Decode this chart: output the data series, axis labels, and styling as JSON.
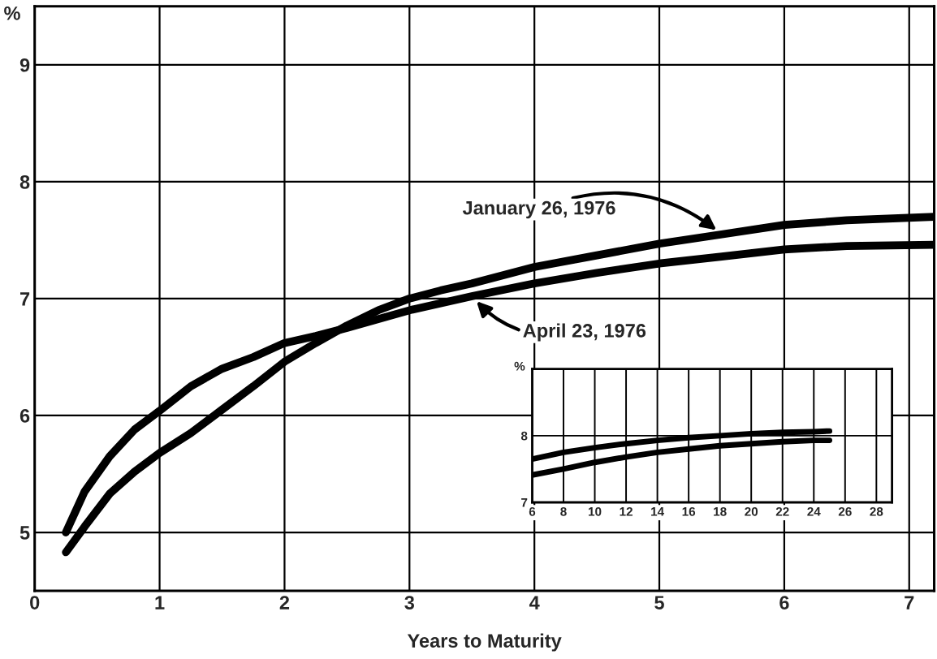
{
  "chart_data": [
    {
      "type": "line",
      "xlabel": "Years to Maturity",
      "ylabel": "%",
      "xlim": [
        0,
        7.2
      ],
      "ylim": [
        4.5,
        9.5
      ],
      "xticks": [
        0,
        1,
        2,
        3,
        4,
        5,
        6,
        7
      ],
      "yticks": [
        5,
        6,
        7,
        8,
        9
      ],
      "grid": true,
      "legend": false,
      "line_style": "solid",
      "marker": "none",
      "series": [
        {
          "name": "January 26, 1976",
          "color": "#000000",
          "x": [
            0.25,
            0.4,
            0.6,
            0.8,
            1.0,
            1.25,
            1.5,
            1.75,
            2.0,
            2.25,
            2.5,
            2.75,
            3.0,
            3.25,
            3.5,
            4.0,
            4.5,
            5.0,
            5.5,
            6.0,
            6.5,
            7.2
          ],
          "values": [
            4.83,
            5.05,
            5.33,
            5.52,
            5.68,
            5.85,
            6.05,
            6.25,
            6.46,
            6.62,
            6.77,
            6.9,
            7.0,
            7.07,
            7.13,
            7.27,
            7.37,
            7.47,
            7.55,
            7.63,
            7.67,
            7.7
          ]
        },
        {
          "name": "April 23, 1976",
          "color": "#000000",
          "x": [
            0.25,
            0.4,
            0.6,
            0.8,
            1.0,
            1.25,
            1.5,
            1.75,
            2.0,
            2.25,
            2.5,
            3.0,
            3.5,
            4.0,
            4.5,
            5.0,
            5.5,
            6.0,
            6.5,
            7.2
          ],
          "values": [
            5.0,
            5.35,
            5.65,
            5.88,
            6.04,
            6.25,
            6.4,
            6.5,
            6.62,
            6.68,
            6.75,
            6.9,
            7.02,
            7.13,
            7.22,
            7.3,
            7.36,
            7.42,
            7.45,
            7.46
          ]
        }
      ]
    },
    {
      "type": "line",
      "ylabel": "%",
      "xlim": [
        6,
        29
      ],
      "ylim": [
        7,
        9
      ],
      "xticks": [
        6,
        8,
        10,
        12,
        14,
        16,
        18,
        20,
        22,
        24,
        26,
        28
      ],
      "yticks": [
        7,
        8
      ],
      "grid": true,
      "legend": false,
      "line_style": "solid",
      "marker": "none",
      "series": [
        {
          "color": "#000000",
          "x": [
            6,
            8,
            10,
            12,
            14,
            16,
            18,
            20,
            22,
            24,
            25
          ],
          "values": [
            7.65,
            7.75,
            7.82,
            7.88,
            7.93,
            7.97,
            8.0,
            8.03,
            8.05,
            8.06,
            8.07
          ]
        },
        {
          "color": "#000000",
          "x": [
            6,
            8,
            10,
            12,
            14,
            16,
            18,
            20,
            22,
            24,
            25
          ],
          "values": [
            7.41,
            7.5,
            7.6,
            7.68,
            7.75,
            7.8,
            7.85,
            7.88,
            7.91,
            7.93,
            7.93
          ]
        }
      ]
    }
  ]
}
